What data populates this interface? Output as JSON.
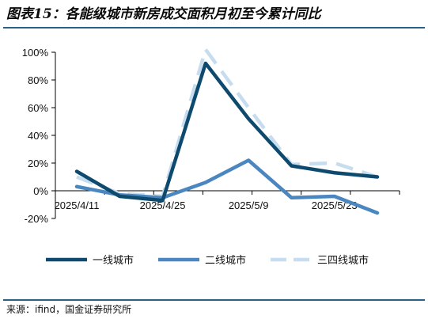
{
  "figure": {
    "title": "图表15：各能级城市新房成交面积月初至今累计同比",
    "source": "来源：ifind，国金证券研究所"
  },
  "chart_data": {
    "type": "line",
    "title": "",
    "xlabel": "",
    "ylabel": "",
    "ylim": [
      -0.2,
      1.0
    ],
    "yticks": [
      -0.2,
      0.0,
      0.2,
      0.4,
      0.6,
      0.8,
      1.0
    ],
    "ytick_labels": [
      "-20%",
      "0%",
      "20%",
      "40%",
      "60%",
      "80%",
      "100%"
    ],
    "x": [
      "2025/4/11",
      "2025/4/18",
      "2025/4/25",
      "2025/5/2",
      "2025/5/9",
      "2025/5/16",
      "2025/5/23",
      "2025/5/30"
    ],
    "xtick_labels": [
      "2025/4/11",
      "2025/4/25",
      "2025/5/9",
      "2025/5/23"
    ],
    "grid": false,
    "legend_position": "bottom",
    "series": [
      {
        "name": "一线城市",
        "color": "#0e4a6e",
        "dash": "solid",
        "values": [
          0.14,
          -0.04,
          -0.07,
          0.92,
          0.52,
          0.18,
          0.13,
          0.1
        ]
      },
      {
        "name": "二线城市",
        "color": "#4a86c0",
        "dash": "solid",
        "values": [
          0.03,
          -0.03,
          -0.05,
          0.06,
          0.22,
          -0.05,
          -0.04,
          -0.16
        ]
      },
      {
        "name": "三四线城市",
        "color": "#c6ddef",
        "dash": "dashed",
        "values": [
          0.1,
          -0.02,
          -0.04,
          1.02,
          0.6,
          0.19,
          0.2,
          0.1
        ]
      }
    ]
  }
}
